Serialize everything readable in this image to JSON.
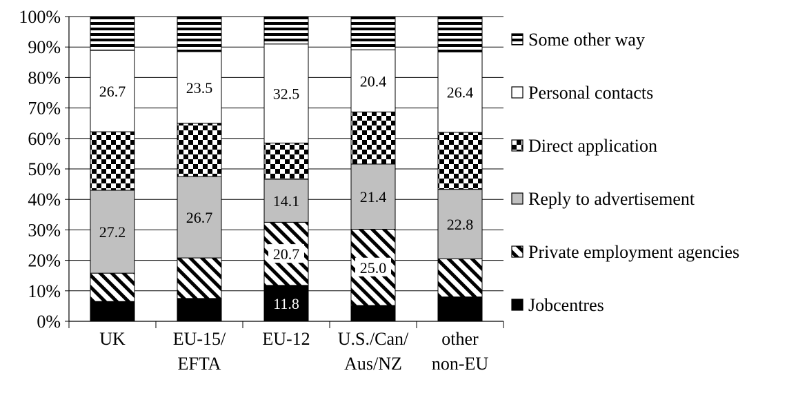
{
  "chart_data": {
    "type": "bar",
    "stacked": true,
    "normalized": true,
    "categories": [
      [
        "UK"
      ],
      [
        "EU-15/",
        "EFTA"
      ],
      [
        "EU-12"
      ],
      [
        "U.S./Can/",
        "Aus/NZ"
      ],
      [
        "other",
        "non-EU"
      ]
    ],
    "series": [
      {
        "name": "Jobcentres",
        "pattern": "solid-black",
        "values": [
          6.5,
          7.5,
          11.8,
          5.2,
          8.0
        ]
      },
      {
        "name": "Private employment agencies",
        "pattern": "diagonal-hatch",
        "values": [
          9.3,
          13.3,
          20.7,
          25.0,
          12.5
        ]
      },
      {
        "name": "Reply to advertisement",
        "pattern": "solid-gray",
        "values": [
          27.2,
          26.7,
          14.1,
          21.4,
          22.8
        ]
      },
      {
        "name": "Direct application",
        "pattern": "checker",
        "values": [
          19.2,
          17.5,
          11.9,
          17.1,
          18.7
        ]
      },
      {
        "name": "Personal contacts",
        "pattern": "solid-white",
        "values": [
          26.7,
          23.5,
          32.5,
          20.4,
          26.4
        ]
      },
      {
        "name": "Some other way",
        "pattern": "horizontal-stripes",
        "values": [
          11.1,
          11.5,
          9.0,
          10.9,
          11.6
        ]
      }
    ],
    "data_labels": [
      {
        "series": 0,
        "category": 2,
        "text": "11.8"
      },
      {
        "series": 1,
        "category": 2,
        "text": "20.7"
      },
      {
        "series": 1,
        "category": 3,
        "text": "25.0"
      },
      {
        "series": 2,
        "category": 0,
        "text": "27.2"
      },
      {
        "series": 2,
        "category": 1,
        "text": "26.7"
      },
      {
        "series": 2,
        "category": 2,
        "text": "14.1"
      },
      {
        "series": 2,
        "category": 3,
        "text": "21.4"
      },
      {
        "series": 2,
        "category": 4,
        "text": "22.8"
      },
      {
        "series": 4,
        "category": 0,
        "text": "26.7"
      },
      {
        "series": 4,
        "category": 1,
        "text": "23.5"
      },
      {
        "series": 4,
        "category": 2,
        "text": "32.5"
      },
      {
        "series": 4,
        "category": 3,
        "text": "20.4"
      },
      {
        "series": 4,
        "category": 4,
        "text": "26.4"
      }
    ],
    "yticks": [
      "0%",
      "10%",
      "20%",
      "30%",
      "40%",
      "50%",
      "60%",
      "70%",
      "80%",
      "90%",
      "100%"
    ],
    "ylim": [
      0,
      100
    ],
    "grid": true,
    "legend_position": "right",
    "title": "",
    "xlabel": "",
    "ylabel": ""
  }
}
